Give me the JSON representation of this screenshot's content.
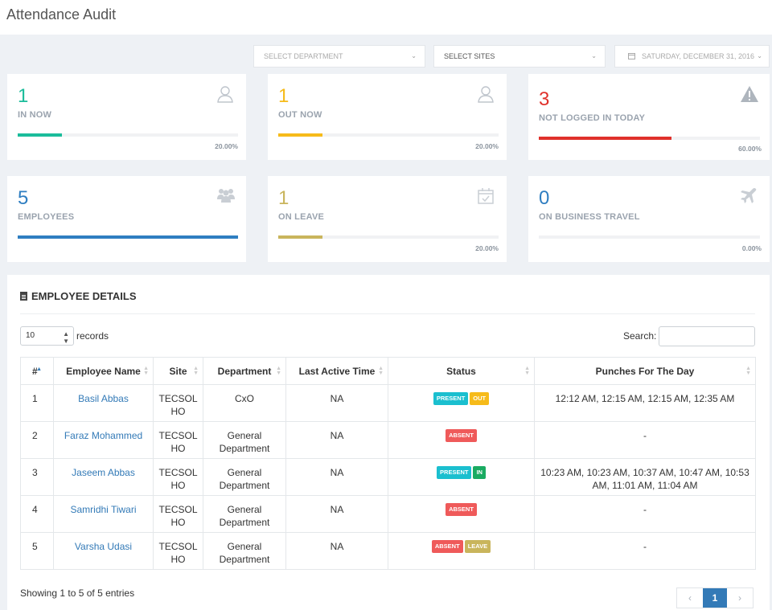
{
  "page": {
    "title": "Attendance Audit"
  },
  "filters": {
    "department": "SELECT DEPARTMENT",
    "sites": "SELECT SITES",
    "date": "SATURDAY, DECEMBER 31, 2016"
  },
  "cards": [
    {
      "value": "1",
      "label": "IN NOW",
      "percent": "20.00%",
      "progress": 0.2,
      "color": "#1bbc9b",
      "icon": "user-outline-icon"
    },
    {
      "value": "1",
      "label": "OUT NOW",
      "percent": "20.00%",
      "progress": 0.2,
      "color": "#f6bb1a",
      "icon": "user-outline-icon"
    },
    {
      "value": "3",
      "label": "NOT LOGGED IN TODAY",
      "percent": "60.00%",
      "progress": 0.6,
      "color": "#e0312b",
      "icon": "warning-icon"
    },
    {
      "value": "5",
      "label": "EMPLOYEES",
      "percent": "",
      "progress": 1.0,
      "color": "#2f7ec1",
      "icon": "users-group-icon"
    },
    {
      "value": "1",
      "label": "ON LEAVE",
      "percent": "20.00%",
      "progress": 0.2,
      "color": "#c9b55c",
      "icon": "calendar-check-icon"
    },
    {
      "value": "0",
      "label": "ON BUSINESS TRAVEL",
      "percent": "0.00%",
      "progress": 0.0,
      "color": "#2f7ec1",
      "icon": "plane-icon"
    }
  ],
  "details": {
    "title": "EMPLOYEE DETAILS",
    "length_value": "10",
    "length_label": "records",
    "search_label": "Search:",
    "columns": [
      "#",
      "Employee Name",
      "Site",
      "Department",
      "Last Active Time",
      "Status",
      "Punches For The Day"
    ],
    "rows": [
      {
        "num": "1",
        "name": "Basil Abbas",
        "site": "TECSOL HO",
        "dept": "CxO",
        "last": "NA",
        "statuses": [
          "PRESENT",
          "OUT"
        ],
        "punches": "12:12 AM, 12:15 AM, 12:15 AM, 12:35 AM"
      },
      {
        "num": "2",
        "name": "Faraz Mohammed",
        "site": "TECSOL HO",
        "dept": "General Department",
        "last": "NA",
        "statuses": [
          "ABSENT"
        ],
        "punches": "-"
      },
      {
        "num": "3",
        "name": "Jaseem Abbas",
        "site": "TECSOL HO",
        "dept": "General Department",
        "last": "NA",
        "statuses": [
          "PRESENT",
          "IN"
        ],
        "punches": "10:23 AM, 10:23 AM, 10:37 AM, 10:47 AM, 10:53 AM, 11:01 AM, 11:04 AM"
      },
      {
        "num": "4",
        "name": "Samridhi Tiwari",
        "site": "TECSOL HO",
        "dept": "General Department",
        "last": "NA",
        "statuses": [
          "ABSENT"
        ],
        "punches": "-"
      },
      {
        "num": "5",
        "name": "Varsha Udasi",
        "site": "TECSOL HO",
        "dept": "General Department",
        "last": "NA",
        "statuses": [
          "ABSENT",
          "LEAVE"
        ],
        "punches": "-"
      }
    ],
    "info": "Showing 1 to 5 of 5 entries",
    "pagination": {
      "prev": "‹",
      "current": "1",
      "next": "›"
    }
  },
  "badge_colors": {
    "PRESENT": "#1bbfcf",
    "OUT": "#f6bb1a",
    "IN": "#1aab62",
    "ABSENT": "#ef5a5a",
    "LEAVE": "#c9b55c"
  }
}
